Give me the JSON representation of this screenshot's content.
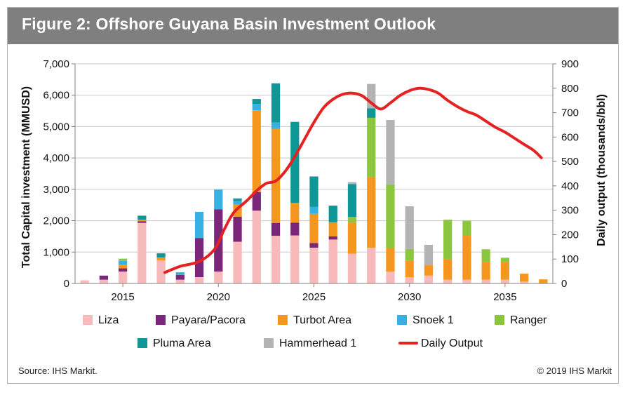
{
  "figure": {
    "title": "Figure 2: Offshore Guyana Basin Investment Outlook",
    "source": "Source: IHS Markit.",
    "copyright": "© 2019 IHS Markit"
  },
  "chart_data": {
    "type": "bar",
    "stacked": true,
    "title": "Figure 2: Offshore Guyana Basin Investment Outlook",
    "ylabel": "Total Capital investment (MMUSD)",
    "y2label": "Daily output (thousands/bbl)",
    "ylim": [
      0,
      7000
    ],
    "y2lim": [
      0,
      900
    ],
    "yticks": [
      0,
      1000,
      2000,
      3000,
      4000,
      5000,
      6000,
      7000
    ],
    "ytick_labels": [
      "0",
      "1,000",
      "2,000",
      "3,000",
      "4,000",
      "5,000",
      "6,000",
      "7,000"
    ],
    "y2ticks": [
      0,
      100,
      200,
      300,
      400,
      500,
      600,
      700,
      800,
      900
    ],
    "y2tick_labels": [
      "0",
      "100",
      "200",
      "300",
      "400",
      "500",
      "600",
      "700",
      "800",
      "900"
    ],
    "categories": [
      2013,
      2014,
      2015,
      2016,
      2017,
      2018,
      2019,
      2020,
      2021,
      2022,
      2023,
      2024,
      2025,
      2026,
      2027,
      2028,
      2029,
      2030,
      2031,
      2032,
      2033,
      2034,
      2035,
      2036,
      2037
    ],
    "xtick_labels": [
      "2015",
      "2020",
      "2025",
      "2030",
      "2035"
    ],
    "xtick_years": [
      2015,
      2020,
      2025,
      2030,
      2035
    ],
    "grid": true,
    "legend_position": "bottom",
    "series": [
      {
        "name": "Liza",
        "color": "#f7b9b9",
        "values": [
          100,
          120,
          380,
          1930,
          730,
          120,
          200,
          380,
          1330,
          2320,
          1520,
          1530,
          1140,
          1400,
          950,
          1140,
          380,
          200,
          250,
          120,
          120,
          120,
          120,
          60,
          0
        ]
      },
      {
        "name": "Payara/Pacora",
        "color": "#7b2678",
        "values": [
          0,
          130,
          100,
          50,
          0,
          150,
          1250,
          1980,
          800,
          590,
          410,
          410,
          150,
          100,
          0,
          0,
          0,
          0,
          0,
          0,
          0,
          0,
          0,
          0,
          0
        ]
      },
      {
        "name": "Turbot Area",
        "color": "#f5961e",
        "values": [
          0,
          0,
          120,
          50,
          100,
          0,
          0,
          0,
          380,
          2610,
          3000,
          630,
          930,
          450,
          1000,
          2250,
          750,
          520,
          330,
          650,
          1400,
          570,
          570,
          250,
          130
        ]
      },
      {
        "name": "Snoek 1",
        "color": "#37b0e4",
        "values": [
          0,
          0,
          120,
          0,
          0,
          50,
          830,
          630,
          120,
          200,
          200,
          0,
          220,
          0,
          0,
          0,
          0,
          0,
          0,
          0,
          0,
          0,
          0,
          0,
          0
        ]
      },
      {
        "name": "Ranger",
        "color": "#8cc63f",
        "values": [
          0,
          0,
          70,
          0,
          0,
          0,
          0,
          0,
          0,
          0,
          0,
          0,
          0,
          0,
          170,
          1890,
          2030,
          380,
          0,
          1260,
          480,
          400,
          130,
          0,
          0
        ]
      },
      {
        "name": "Pluma Area",
        "color": "#0f9696",
        "values": [
          0,
          0,
          0,
          130,
          130,
          30,
          0,
          0,
          80,
          160,
          1250,
          2580,
          970,
          530,
          1050,
          300,
          0,
          0,
          0,
          0,
          0,
          0,
          0,
          0,
          0
        ]
      },
      {
        "name": "Hammerhead 1",
        "color": "#b3b3b3",
        "values": [
          0,
          0,
          0,
          0,
          0,
          0,
          0,
          0,
          0,
          0,
          0,
          0,
          0,
          0,
          60,
          780,
          2050,
          1360,
          650,
          0,
          0,
          0,
          0,
          0,
          0
        ]
      }
    ],
    "line_series": {
      "name": "Daily Output",
      "color": "#e52222",
      "axis": "right",
      "x": [
        2017.2,
        2018.0,
        2019.0,
        2019.8,
        2020.3,
        2020.8,
        2021.5,
        2022.0,
        2022.5,
        2023.0,
        2023.5,
        2024.0,
        2024.5,
        2025.0,
        2025.5,
        2026.0,
        2026.5,
        2027.0,
        2027.5,
        2028.0,
        2028.5,
        2029.0,
        2029.5,
        2030.0,
        2030.5,
        2031.0,
        2031.5,
        2032.0,
        2032.5,
        2033.0,
        2033.5,
        2034.0,
        2034.5,
        2035.0,
        2035.5,
        2036.0,
        2036.5,
        2036.9
      ],
      "y": [
        45,
        70,
        90,
        140,
        220,
        290,
        340,
        380,
        410,
        420,
        460,
        520,
        590,
        660,
        720,
        755,
        775,
        780,
        770,
        740,
        715,
        740,
        770,
        790,
        800,
        795,
        780,
        750,
        725,
        705,
        690,
        665,
        640,
        620,
        595,
        570,
        545,
        515
      ]
    }
  }
}
